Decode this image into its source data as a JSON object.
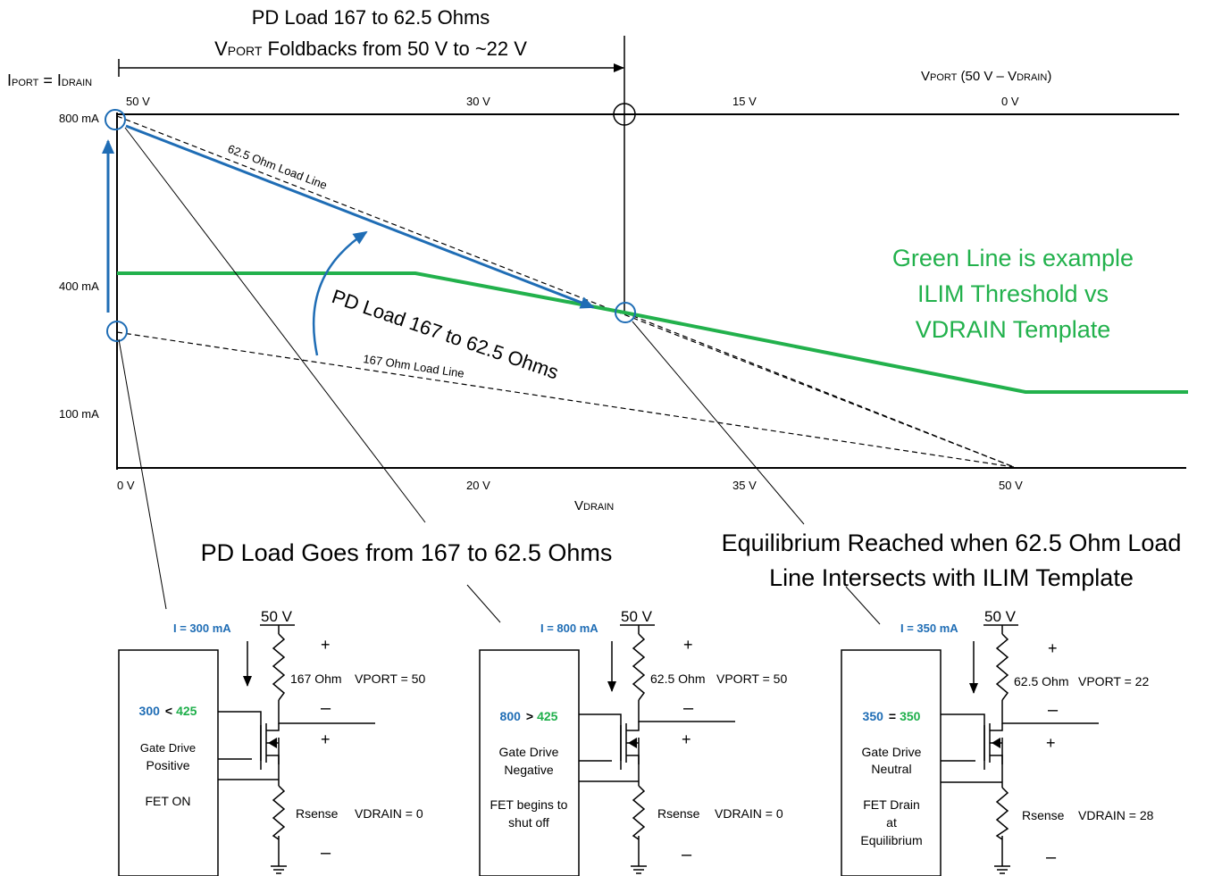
{
  "header": {
    "title_line1": "PD Load 167 to 62.5 Ohms",
    "title_line2_v": "V",
    "title_line2_sub": "PORT",
    "title_line2_rest": "  Foldbacks from 50 V to ~22 V"
  },
  "axes": {
    "left_label_i1": "I",
    "left_label_sub1": "PORT",
    "left_label_eq": " = I",
    "left_label_sub2": "DRAIN",
    "right_label_v": "V",
    "right_label_sub": "PORT",
    "right_label_rest": " (50 V – V",
    "right_label_sub2": "DRAIN",
    "right_label_close": ")",
    "bottom_label_v": "V",
    "bottom_label_sub": "DRAIN",
    "top_ticks": [
      "50 V",
      "30 V",
      "15 V",
      "0 V"
    ],
    "bottom_ticks": [
      "0 V",
      "20 V",
      "35 V",
      "50 V"
    ],
    "y_ticks": [
      "800 mA",
      "400 mA",
      "100 mA"
    ]
  },
  "annotations": {
    "load_line_625": "62.5 Ohm Load Line",
    "load_line_167": "167 Ohm  Load Line",
    "pd_load_curve": "PD Load 167 to 62.5 Ohms",
    "green_line_1": "Green Line is example",
    "green_line_2": "ILIM Threshold vs",
    "green_line_3": "VDRAIN Template",
    "callout_middle": "PD Load Goes from 167 to 62.5 Ohms",
    "callout_right_1": "Equilibrium Reached when 62.5 Ohm Load",
    "callout_right_2": "Line Intersects with ILIM Template"
  },
  "circuits": [
    {
      "current": "I = 300 mA",
      "supply": "50 V",
      "resistor": "167 Ohm",
      "vport": "VPORT = 50",
      "cmp_left": "300",
      "cmp_op": "<",
      "cmp_right": "425",
      "box_lines": [
        "Gate Drive",
        "Positive",
        "",
        "FET ON"
      ],
      "rsense": "Rsense",
      "vdrain": "VDRAIN = 0",
      "plus1": "+",
      "minus1": "–",
      "plus2": "+",
      "minus2": "–"
    },
    {
      "current": "I = 800 mA",
      "supply": "50 V",
      "resistor": "62.5 Ohm",
      "vport": "VPORT = 50",
      "cmp_left": "800",
      "cmp_op": ">",
      "cmp_right": "425",
      "box_lines": [
        "Gate Drive",
        "Negative",
        "",
        "FET begins to",
        "shut off"
      ],
      "rsense": "Rsense",
      "vdrain": "VDRAIN = 0",
      "plus1": "+",
      "minus1": "–",
      "plus2": "+",
      "minus2": "–"
    },
    {
      "current": "I = 350 mA",
      "supply": "50 V",
      "resistor": "62.5 Ohm",
      "vport": "VPORT = 22",
      "cmp_left": "350",
      "cmp_op": "=",
      "cmp_right": "350",
      "box_lines": [
        "Gate Drive",
        "Neutral",
        "",
        "FET Drain",
        "at",
        "Equilibrium"
      ],
      "rsense": "Rsense",
      "vdrain": "VDRAIN = 28",
      "plus1": "+",
      "minus1": "–",
      "plus2": "+",
      "minus2": "–"
    }
  ],
  "colors": {
    "blue": "#1f6db5",
    "green": "#22b14c",
    "black": "#000000"
  }
}
